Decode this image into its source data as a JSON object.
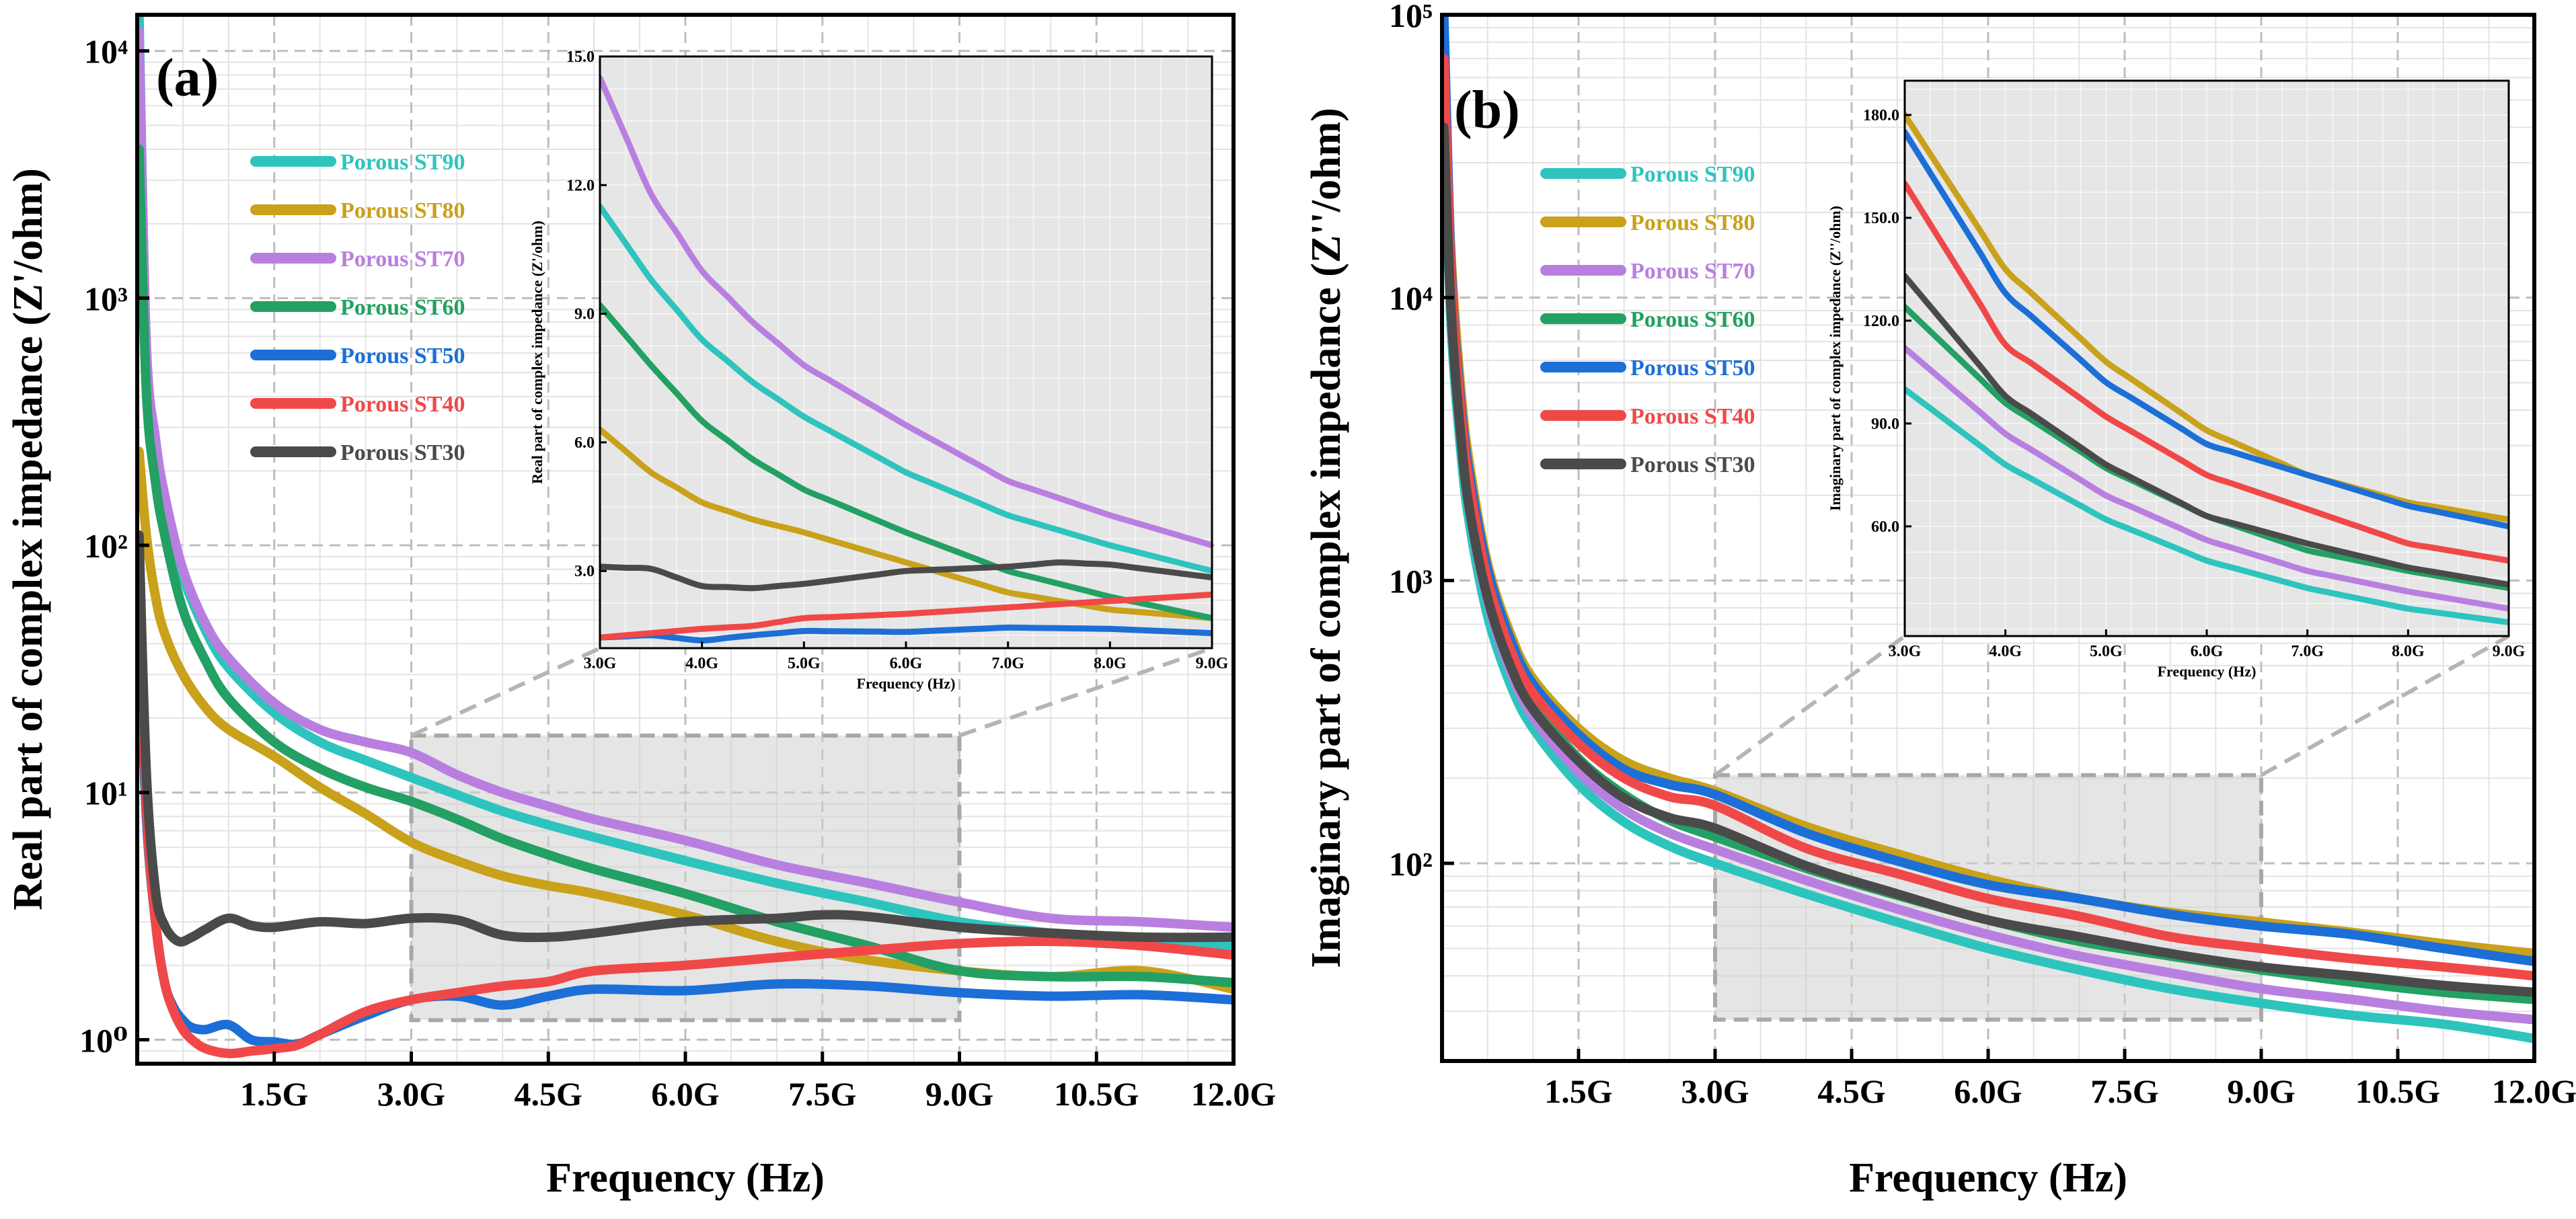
{
  "chart_data": [
    {
      "panel": "(a)",
      "type": "line",
      "xlabel": "Frequency (Hz)",
      "ylabel": "Real part of complex impedance (Z'/ohm)",
      "yscale": "log",
      "xlim": [
        0,
        12
      ],
      "ylim": [
        0.8,
        14000
      ],
      "x_ticks": [
        1.5,
        3,
        4.5,
        6,
        7.5,
        9,
        10.5,
        12
      ],
      "x_tick_labels": [
        "1.5G",
        "3.0G",
        "4.5G",
        "6.0G",
        "7.5G",
        "9.0G",
        "10.5G",
        "12.0G"
      ],
      "y_ticks": [
        1,
        10,
        100,
        1000,
        10000
      ],
      "y_tick_labels": [
        "10⁰",
        "10¹",
        "10²",
        "10³",
        "10⁴"
      ],
      "legend_position": "upper-left",
      "zoom_box": {
        "x": [
          3,
          9
        ],
        "y": [
          1.2,
          17
        ]
      },
      "series": [
        {
          "name": "Porous ST90",
          "color": "#2ec4be",
          "x": [
            0.02,
            0.1,
            0.2,
            0.3,
            0.5,
            0.75,
            1,
            1.5,
            2,
            2.5,
            3,
            3.5,
            4,
            4.5,
            5,
            6,
            7,
            8,
            9,
            10,
            11,
            12
          ],
          "values": [
            14000,
            600,
            250,
            150,
            75,
            45,
            32,
            21,
            16,
            13.5,
            11.5,
            9.8,
            8.4,
            7.4,
            6.6,
            5.3,
            4.3,
            3.6,
            3.0,
            2.7,
            2.5,
            2.4
          ]
        },
        {
          "name": "Porous ST80",
          "color": "#c9a11a",
          "x": [
            0.02,
            0.1,
            0.2,
            0.3,
            0.5,
            0.75,
            1,
            1.5,
            2,
            2.5,
            3,
            3.5,
            4,
            4.5,
            5,
            6,
            7,
            8,
            9,
            10,
            11,
            12
          ],
          "values": [
            240,
            110,
            62,
            44,
            30,
            22,
            18,
            14,
            10.5,
            8.2,
            6.3,
            5.3,
            4.6,
            4.2,
            3.9,
            3.2,
            2.5,
            2.1,
            1.9,
            1.8,
            1.9,
            1.6
          ]
        },
        {
          "name": "Porous ST70",
          "color": "#b87fe0",
          "x": [
            0.02,
            0.1,
            0.2,
            0.3,
            0.5,
            0.75,
            1,
            1.5,
            2,
            2.5,
            3,
            3.5,
            4,
            4.5,
            5,
            6,
            7,
            8,
            9,
            10,
            11,
            12
          ],
          "values": [
            12000,
            650,
            270,
            160,
            80,
            48,
            35,
            23,
            18,
            16,
            14.5,
            11.8,
            10,
            8.8,
            7.8,
            6.4,
            5.1,
            4.3,
            3.6,
            3.1,
            3.0,
            2.85
          ]
        },
        {
          "name": "Porous ST60",
          "color": "#23a063",
          "x": [
            0.02,
            0.1,
            0.2,
            0.3,
            0.5,
            0.75,
            1,
            1.5,
            2,
            2.5,
            3,
            3.5,
            4,
            4.5,
            5,
            6,
            7,
            8,
            9,
            10,
            11,
            12
          ],
          "values": [
            4000,
            420,
            180,
            110,
            55,
            34,
            24,
            16,
            12.5,
            10.5,
            9.2,
            7.8,
            6.5,
            5.6,
            4.9,
            3.9,
            3.0,
            2.4,
            1.9,
            1.8,
            1.8,
            1.7
          ]
        },
        {
          "name": "Porous ST50",
          "color": "#1c6fd6",
          "x": [
            0.02,
            0.1,
            0.2,
            0.3,
            0.4,
            0.5,
            0.6,
            0.75,
            1,
            1.25,
            1.5,
            1.75,
            2,
            2.5,
            3,
            3.5,
            4,
            4.5,
            5,
            6,
            7,
            8,
            9,
            10,
            11,
            12
          ],
          "values": [
            50,
            8,
            3,
            1.7,
            1.35,
            1.2,
            1.12,
            1.1,
            1.15,
            1.0,
            0.98,
            0.96,
            1.05,
            1.25,
            1.45,
            1.5,
            1.38,
            1.5,
            1.6,
            1.58,
            1.68,
            1.65,
            1.55,
            1.5,
            1.52,
            1.45
          ]
        },
        {
          "name": "Porous ST40",
          "color": "#f04848",
          "x": [
            0.02,
            0.1,
            0.2,
            0.3,
            0.4,
            0.5,
            0.6,
            0.75,
            1,
            1.25,
            1.5,
            1.75,
            2,
            2.5,
            3,
            3.5,
            4,
            4.5,
            5,
            6,
            7,
            8,
            9,
            10,
            11,
            12
          ],
          "values": [
            90,
            9,
            3,
            1.7,
            1.3,
            1.1,
            1.0,
            0.92,
            0.88,
            0.9,
            0.92,
            0.95,
            1.05,
            1.3,
            1.45,
            1.55,
            1.65,
            1.72,
            1.9,
            2.0,
            2.15,
            2.3,
            2.45,
            2.5,
            2.4,
            2.2
          ]
        },
        {
          "name": "Porous ST30",
          "color": "#4a4a4a",
          "x": [
            0.02,
            0.1,
            0.2,
            0.3,
            0.45,
            0.6,
            0.75,
            1,
            1.25,
            1.5,
            2,
            2.5,
            3,
            3.5,
            4,
            4.5,
            5,
            6,
            7,
            7.5,
            8,
            9,
            10,
            11,
            12
          ],
          "values": [
            110,
            12,
            4,
            2.9,
            2.5,
            2.6,
            2.8,
            3.1,
            2.9,
            2.85,
            3.0,
            2.95,
            3.1,
            3.05,
            2.65,
            2.6,
            2.7,
            3.0,
            3.1,
            3.2,
            3.15,
            2.85,
            2.7,
            2.6,
            2.6
          ]
        }
      ],
      "inset": {
        "xlabel": "Frequency (Hz)",
        "ylabel": "Real part of complex impedance (Z'/ohm)",
        "x_ticks": [
          3,
          4,
          5,
          6,
          7,
          8,
          9
        ],
        "x_tick_labels": [
          "3.0G",
          "4.0G",
          "5.0G",
          "6.0G",
          "7.0G",
          "8.0G",
          "9.0G"
        ],
        "y_ticks": [
          3,
          6,
          9,
          12,
          15
        ],
        "y_tick_labels": [
          "3.0",
          "6.0",
          "9.0",
          "12.0",
          "15.0"
        ],
        "xlim": [
          3,
          9
        ],
        "ylim": [
          1.2,
          15
        ]
      }
    },
    {
      "panel": "(b)",
      "type": "line",
      "xlabel": "Frequency (Hz)",
      "ylabel": "Imaginary part of complex impedance (Z''/ohm)",
      "yscale": "log",
      "xlim": [
        0,
        12
      ],
      "ylim": [
        20,
        100000
      ],
      "x_ticks": [
        1.5,
        3,
        4.5,
        6,
        7.5,
        9,
        10.5,
        12
      ],
      "x_tick_labels": [
        "1.5G",
        "3.0G",
        "4.5G",
        "6.0G",
        "7.5G",
        "9.0G",
        "10.5G",
        "12.0G"
      ],
      "y_ticks": [
        100,
        1000,
        10000,
        100000
      ],
      "y_tick_labels": [
        "10²",
        "10³",
        "10⁴",
        "10⁵"
      ],
      "legend_position": "upper-left",
      "zoom_box": {
        "x": [
          3,
          9
        ],
        "y": [
          28,
          205
        ]
      },
      "series": [
        {
          "name": "Porous ST90",
          "color": "#2ec4be",
          "x": [
            0.02,
            0.1,
            0.2,
            0.3,
            0.5,
            0.75,
            1,
            1.5,
            2,
            2.5,
            3,
            4,
            5,
            6,
            7,
            8,
            9,
            10,
            11,
            12
          ],
          "values": [
            40000,
            8000,
            3000,
            1600,
            750,
            430,
            300,
            190,
            140,
            115,
            100,
            78,
            62,
            50,
            42,
            36,
            32,
            29,
            27,
            24
          ]
        },
        {
          "name": "Porous ST80",
          "color": "#c9a11a",
          "x": [
            0.02,
            0.1,
            0.2,
            0.3,
            0.5,
            0.75,
            1,
            1.5,
            2,
            2.5,
            3,
            4,
            5,
            6,
            7,
            8,
            9,
            10,
            11,
            12
          ],
          "values": [
            60000,
            14000,
            5000,
            2600,
            1150,
            650,
            450,
            300,
            230,
            200,
            180,
            135,
            108,
            88,
            75,
            67,
            62,
            57,
            52,
            48
          ]
        },
        {
          "name": "Porous ST70",
          "color": "#b87fe0",
          "x": [
            0.02,
            0.1,
            0.2,
            0.3,
            0.5,
            0.75,
            1,
            1.5,
            2,
            2.5,
            3,
            4,
            5,
            6,
            7,
            8,
            9,
            10,
            11,
            12
          ],
          "values": [
            50000,
            9500,
            3500,
            1800,
            850,
            480,
            330,
            210,
            155,
            128,
            112,
            87,
            69,
            56,
            47,
            41,
            36,
            33,
            30,
            28
          ]
        },
        {
          "name": "Porous ST60",
          "color": "#23a063",
          "x": [
            0.02,
            0.1,
            0.2,
            0.3,
            0.5,
            0.75,
            1,
            1.5,
            2,
            2.5,
            3,
            4,
            5,
            6,
            7,
            8,
            9,
            10,
            11,
            12
          ],
          "values": [
            60000,
            11000,
            4000,
            2000,
            950,
            540,
            370,
            235,
            175,
            142,
            124,
            96,
            77,
            63,
            53,
            47,
            42,
            38,
            35,
            33
          ]
        },
        {
          "name": "Porous ST50",
          "color": "#1c6fd6",
          "x": [
            0.02,
            0.1,
            0.2,
            0.3,
            0.5,
            0.75,
            1,
            1.5,
            2,
            2.5,
            3,
            4,
            5,
            6,
            7,
            8,
            9,
            10,
            11,
            12
          ],
          "values": [
            100000,
            13000,
            4500,
            2400,
            1100,
            620,
            430,
            285,
            215,
            190,
            175,
            128,
            102,
            84,
            75,
            66,
            60,
            56,
            50,
            45
          ]
        },
        {
          "name": "Porous ST40",
          "color": "#f04848",
          "x": [
            0.02,
            0.1,
            0.2,
            0.3,
            0.5,
            0.75,
            1,
            1.5,
            2,
            2.5,
            3,
            4,
            5,
            6,
            7,
            8,
            9,
            10,
            11,
            12
          ],
          "values": [
            70000,
            12000,
            4200,
            2200,
            1000,
            570,
            400,
            265,
            200,
            172,
            160,
            113,
            92,
            75,
            65,
            55,
            50,
            46,
            43,
            40
          ]
        },
        {
          "name": "Porous ST30",
          "color": "#4a4a4a",
          "x": [
            0.02,
            0.1,
            0.2,
            0.3,
            0.5,
            0.75,
            1,
            1.5,
            2,
            2.5,
            3,
            4,
            5,
            6,
            7,
            8,
            9,
            10,
            11,
            12
          ],
          "values": [
            40000,
            9000,
            3400,
            1800,
            870,
            500,
            350,
            230,
            170,
            145,
            133,
            98,
            78,
            63,
            55,
            48,
            43,
            40,
            37,
            35
          ]
        }
      ],
      "inset": {
        "xlabel": "Frequency (Hz)",
        "ylabel": "Imaginary part of complex impedance (Z''/ohm)",
        "x_ticks": [
          3,
          4,
          5,
          6,
          7,
          8,
          9
        ],
        "x_tick_labels": [
          "3.0G",
          "4.0G",
          "5.0G",
          "6.0G",
          "7.0G",
          "8.0G",
          "9.0G"
        ],
        "y_ticks": [
          60,
          90,
          120,
          150,
          180
        ],
        "y_tick_labels": [
          "60.0",
          "90.0",
          "120.0",
          "150.0",
          "180.0"
        ],
        "xlim": [
          3,
          9
        ],
        "ylim": [
          28,
          190
        ]
      }
    }
  ]
}
